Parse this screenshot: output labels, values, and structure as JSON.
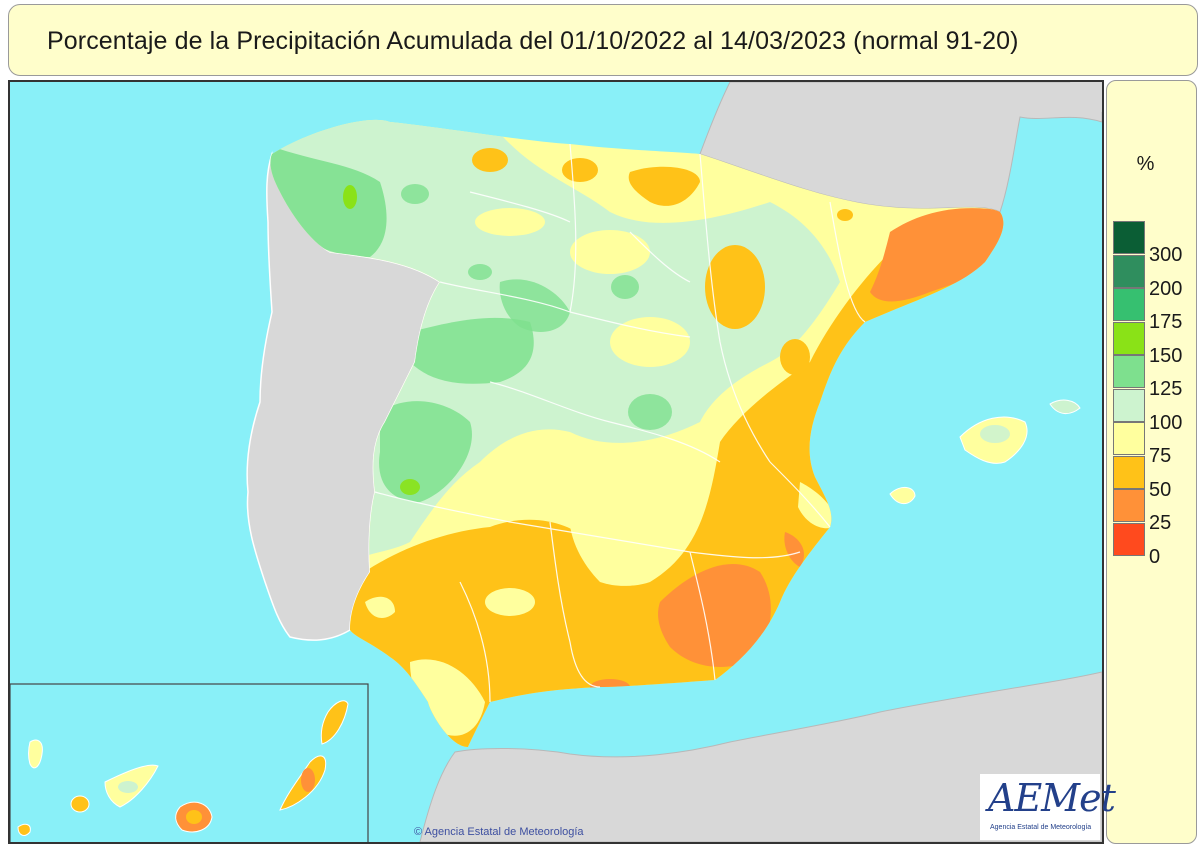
{
  "header": {
    "title": "Porcentaje de la Precipitación Acumulada del 01/10/2022 al 14/03/2023 (normal 91-20)"
  },
  "legend": {
    "unit": "%",
    "items": [
      {
        "label": "300",
        "color": "#0b5e35"
      },
      {
        "label": "200",
        "color": "#2f8e5e"
      },
      {
        "label": "175",
        "color": "#36c070"
      },
      {
        "label": "150",
        "color": "#8ae217"
      },
      {
        "label": "125",
        "color": "#7ee08e"
      },
      {
        "label": "100",
        "color": "#cdf3cf"
      },
      {
        "label": "75",
        "color": "#ffff9e"
      },
      {
        "label": "50",
        "color": "#ffc218"
      },
      {
        "label": "25",
        "color": "#ff9138"
      },
      {
        "label": "0",
        "color": "#ff4a1e"
      }
    ]
  },
  "map": {
    "sea_color": "#89f0f8",
    "foreign_land_color": "#d8d8d8",
    "border_color": "#ffffff"
  },
  "footer": {
    "copyright": "© Agencia Estatal de Meteorología",
    "logo_text": "AEMet",
    "logo_subtitle": "Agencia Estatal de Meteorología"
  }
}
